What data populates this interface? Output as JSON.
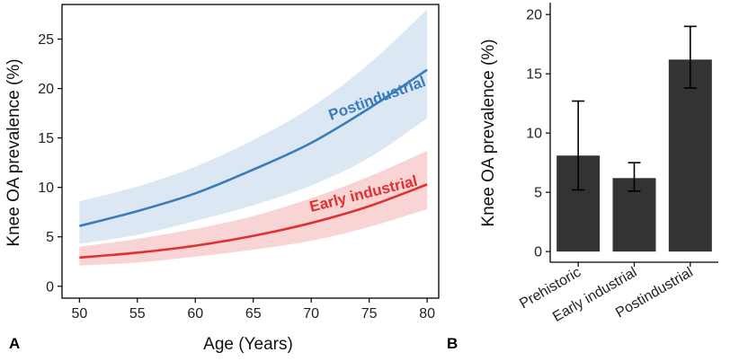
{
  "chart_data": [
    {
      "panel": "A",
      "type": "line",
      "xlabel": "Age (Years)",
      "ylabel": "Knee OA prevalence (%)",
      "xlim": [
        48.5,
        81
      ],
      "ylim": [
        -1.2,
        28.5
      ],
      "xticks": [
        50,
        55,
        60,
        65,
        70,
        75,
        80
      ],
      "yticks": [
        0,
        5,
        10,
        15,
        20,
        25
      ],
      "grid": false,
      "series": [
        {
          "name": "Postindustrial",
          "color": "#3b7bb8",
          "band_color": "#dbe8f4",
          "x": [
            50,
            55,
            60,
            65,
            70,
            75,
            80
          ],
          "y": [
            6.1,
            7.6,
            9.4,
            11.8,
            14.5,
            18.0,
            21.9
          ],
          "lower": [
            4.3,
            5.2,
            6.6,
            8.2,
            10.2,
            13.0,
            17.0
          ],
          "upper": [
            8.6,
            10.1,
            12.1,
            14.8,
            18.1,
            22.5,
            28.0
          ]
        },
        {
          "name": "Early industrial",
          "color": "#e03030",
          "band_color": "#f8d4d4",
          "x": [
            50,
            55,
            60,
            65,
            70,
            75,
            80
          ],
          "y": [
            2.9,
            3.4,
            4.1,
            5.1,
            6.4,
            8.1,
            10.3
          ],
          "lower": [
            2.1,
            2.4,
            3.0,
            3.7,
            4.6,
            6.0,
            7.8
          ],
          "upper": [
            4.0,
            4.8,
            5.8,
            7.1,
            8.9,
            11.1,
            13.7
          ]
        }
      ]
    },
    {
      "panel": "B",
      "type": "bar",
      "ylabel": "Knee OA prevalence (%)",
      "ylim": [
        -0.9,
        21
      ],
      "yticks": [
        0,
        5,
        10,
        15,
        20
      ],
      "categories": [
        "Prehistoric",
        "Early industrial",
        "Postindustrial"
      ],
      "values": [
        8.1,
        6.2,
        16.2
      ],
      "err_low": [
        5.2,
        5.1,
        13.8
      ],
      "err_high": [
        12.7,
        7.5,
        19.0
      ],
      "bar_color": "#333333"
    }
  ]
}
